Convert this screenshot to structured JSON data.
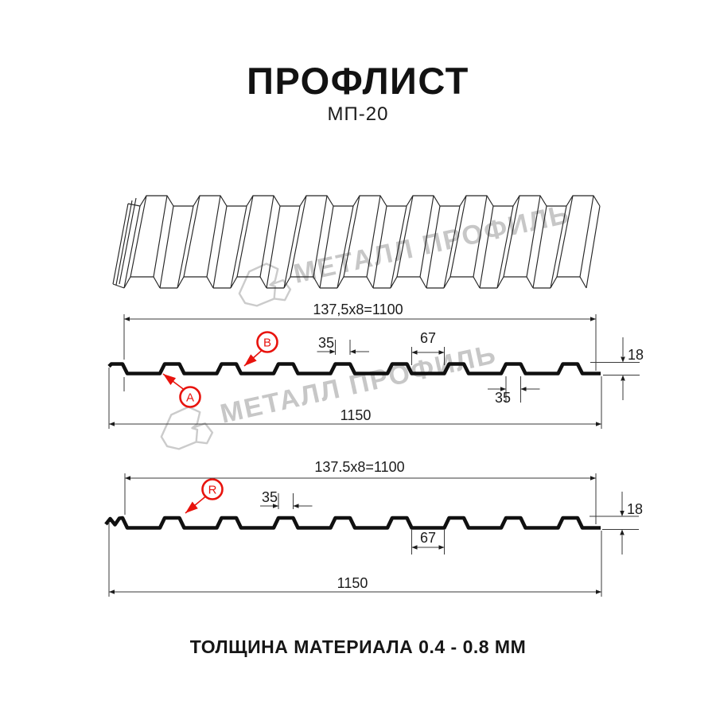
{
  "header": {
    "title": "ПРОФЛИСТ",
    "subtitle": "МП-20"
  },
  "watermark": {
    "brand": "МЕТАЛЛ ПРОФИЛЬ"
  },
  "sections": {
    "profile_a": {
      "module_width": "137,5x8=1100",
      "rib_top_width": "35",
      "rib_spacing": "67",
      "profile_height": "18",
      "rib_bottom_width": "35",
      "overall_width": "1150",
      "label_a": "A",
      "label_b": "B"
    },
    "profile_r": {
      "module_width": "137.5x8=1100",
      "rib_top_width": "35",
      "rib_spacing": "67",
      "profile_height": "18",
      "overall_width": "1150",
      "label_r": "R"
    }
  },
  "footer": {
    "note": "ТОЛЩИНА МАТЕРИАЛА 0.4 - 0.8 ММ"
  },
  "colors": {
    "accent_red": "#e8130d",
    "line": "#1a1a1a",
    "watermark_gray": "#c7c7c7"
  }
}
